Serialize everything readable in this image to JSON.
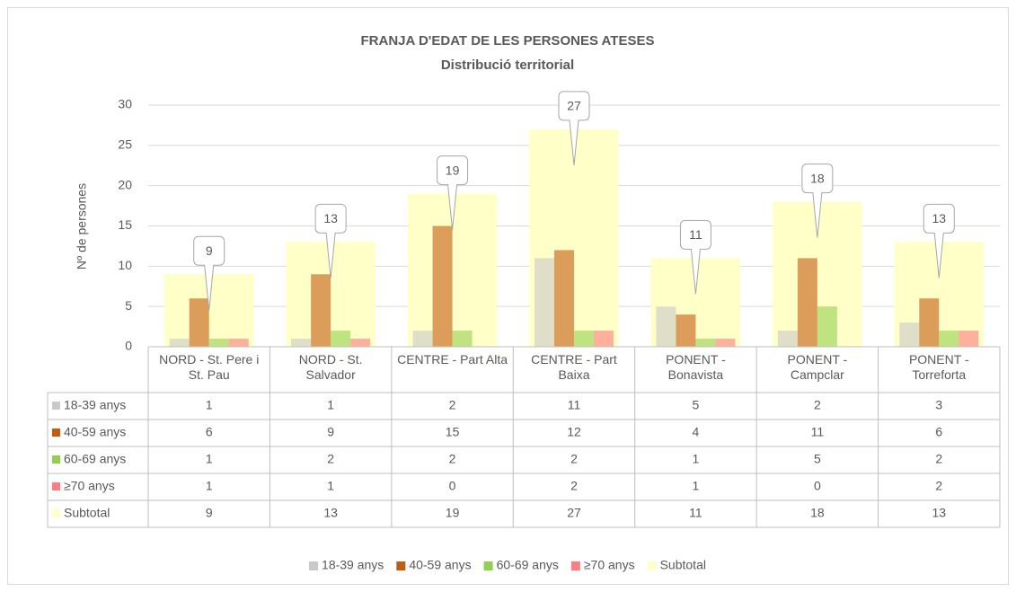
{
  "chart_data": {
    "type": "bar",
    "title": "FRANJA D'EDAT DE LES PERSONES ATESES",
    "subtitle": "Distribució territorial",
    "ylabel": "Nº de persones",
    "categories": [
      "NORD - St. Pere i St. Pau",
      "NORD - St. Salvador",
      "CENTRE - Part Alta",
      "CENTRE - Part Baixa",
      "PONENT - Bonavista",
      "PONENT - Campclar",
      "PONENT - Torreforta"
    ],
    "series": [
      {
        "name": "18-39 anys",
        "color": "#c9c9c9",
        "values": [
          1,
          1,
          2,
          11,
          5,
          2,
          3
        ]
      },
      {
        "name": "40-59 anys",
        "color": "#c55a11",
        "values": [
          6,
          9,
          15,
          12,
          4,
          11,
          6
        ]
      },
      {
        "name": "60-69 anys",
        "color": "#92d050",
        "values": [
          1,
          2,
          2,
          2,
          1,
          5,
          2
        ]
      },
      {
        "name": "≥70 anys",
        "color": "#ff7c80",
        "values": [
          1,
          1,
          0,
          2,
          1,
          0,
          2
        ]
      },
      {
        "name": "Subtotal",
        "color": "#ffffc8",
        "values": [
          9,
          13,
          19,
          27,
          11,
          18,
          13
        ]
      }
    ],
    "ylim": [
      0,
      30
    ],
    "yticks": [
      0,
      5,
      10,
      15,
      20,
      25,
      30
    ],
    "grid": true,
    "data_table": true,
    "legend": "bottom"
  }
}
